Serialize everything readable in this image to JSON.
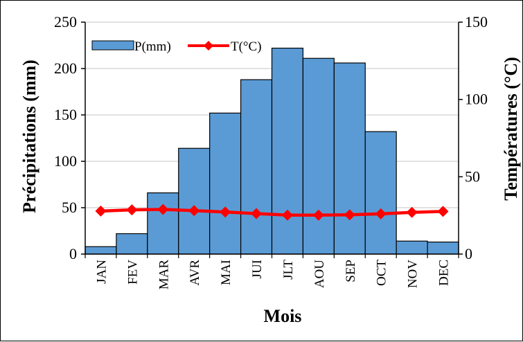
{
  "chart_data": {
    "type": "bar",
    "categories": [
      "JAN",
      "FEV",
      "MAR",
      "AVR",
      "MAI",
      "JUI",
      "JLT",
      "AOU",
      "SEP",
      "OCT",
      "NOV",
      "DEC"
    ],
    "series": [
      {
        "name": "P(mm)",
        "type": "bar",
        "axis": "left",
        "color": "#5b9bd5",
        "values": [
          8,
          22,
          66,
          114,
          152,
          188,
          222,
          211,
          206,
          132,
          14,
          13
        ]
      },
      {
        "name": "T(°C)",
        "type": "line",
        "axis": "right",
        "color": "#ff0000",
        "values": [
          27.8,
          28.6,
          28.9,
          28.1,
          27.2,
          26.2,
          25.2,
          25.2,
          25.4,
          26.0,
          27.0,
          27.6
        ]
      }
    ],
    "xlabel": "Mois",
    "ylabel": "Précipitations (mm)",
    "y2label": "Températures (°C)",
    "ylim": [
      0,
      250
    ],
    "y2lim": [
      0,
      150
    ],
    "yticks": [
      0,
      50,
      100,
      150,
      200,
      250
    ],
    "y2ticks": [
      0,
      50,
      100,
      150
    ],
    "grid": true,
    "legend": "top-left"
  }
}
